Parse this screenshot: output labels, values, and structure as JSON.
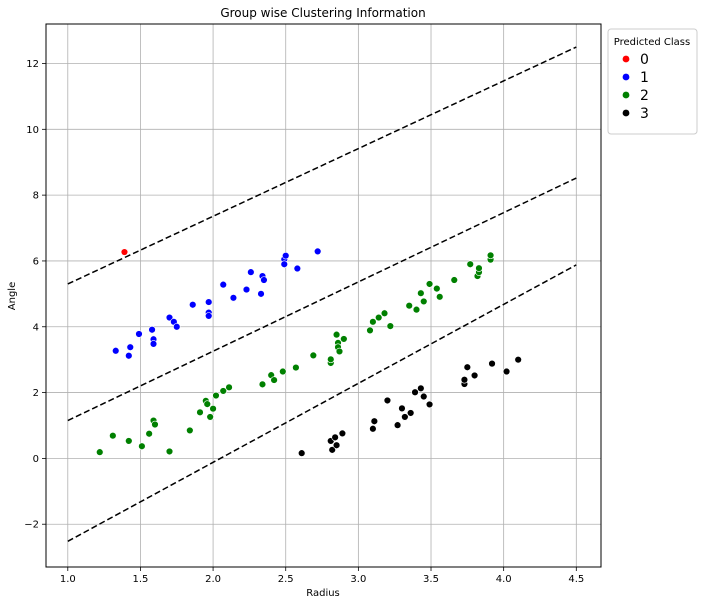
{
  "chart_data": {
    "type": "scatter",
    "title": "Group wise Clustering Information",
    "xlabel": "Radius",
    "ylabel": "Angle",
    "xlim": [
      0.85,
      4.67
    ],
    "ylim": [
      -3.3,
      13.2
    ],
    "xticks": [
      1.0,
      1.5,
      2.0,
      2.5,
      3.0,
      3.5,
      4.0,
      4.5
    ],
    "xtick_labels": [
      "1.0",
      "1.5",
      "2.0",
      "2.5",
      "3.0",
      "3.5",
      "4.0",
      "4.5"
    ],
    "yticks": [
      -2,
      0,
      2,
      4,
      6,
      8,
      10,
      12
    ],
    "ytick_labels": [
      "−2",
      "0",
      "2",
      "4",
      "6",
      "8",
      "10",
      "12"
    ],
    "grid": true,
    "legend": {
      "title": "Predicted Class",
      "placement": "outside-top-right"
    },
    "series": [
      {
        "name": "0",
        "color": "#ff0000",
        "points": [
          [
            1.39,
            6.27
          ]
        ]
      },
      {
        "name": "1",
        "color": "#0000ff",
        "points": [
          [
            1.33,
            3.27
          ],
          [
            1.42,
            3.12
          ],
          [
            1.43,
            3.38
          ],
          [
            1.49,
            3.78
          ],
          [
            1.58,
            3.91
          ],
          [
            1.59,
            3.62
          ],
          [
            1.59,
            3.48
          ],
          [
            1.7,
            4.28
          ],
          [
            1.73,
            4.15
          ],
          [
            1.75,
            4.0
          ],
          [
            1.86,
            4.67
          ],
          [
            1.97,
            4.43
          ],
          [
            1.97,
            4.33
          ],
          [
            1.97,
            4.75
          ],
          [
            2.07,
            5.28
          ],
          [
            2.14,
            4.88
          ],
          [
            2.23,
            5.13
          ],
          [
            2.26,
            5.66
          ],
          [
            2.33,
            5.0
          ],
          [
            2.34,
            5.54
          ],
          [
            2.35,
            5.42
          ],
          [
            2.49,
            6.05
          ],
          [
            2.49,
            5.9
          ],
          [
            2.5,
            6.16
          ],
          [
            2.58,
            5.77
          ],
          [
            2.72,
            6.29
          ]
        ]
      },
      {
        "name": "2",
        "color": "#008000",
        "points": [
          [
            1.22,
            0.19
          ],
          [
            1.31,
            0.69
          ],
          [
            1.42,
            0.53
          ],
          [
            1.51,
            0.37
          ],
          [
            1.56,
            0.75
          ],
          [
            1.59,
            1.15
          ],
          [
            1.6,
            1.03
          ],
          [
            1.7,
            0.21
          ],
          [
            1.84,
            0.85
          ],
          [
            1.91,
            1.4
          ],
          [
            1.95,
            1.75
          ],
          [
            1.96,
            1.65
          ],
          [
            1.98,
            1.26
          ],
          [
            2.0,
            1.51
          ],
          [
            2.02,
            1.91
          ],
          [
            2.07,
            2.05
          ],
          [
            2.11,
            2.16
          ],
          [
            2.34,
            2.25
          ],
          [
            2.4,
            2.53
          ],
          [
            2.42,
            2.38
          ],
          [
            2.48,
            2.64
          ],
          [
            2.57,
            2.76
          ],
          [
            2.69,
            3.13
          ],
          [
            2.81,
            2.9
          ],
          [
            2.81,
            3.01
          ],
          [
            2.85,
            3.76
          ],
          [
            2.86,
            3.51
          ],
          [
            2.86,
            3.38
          ],
          [
            2.87,
            3.25
          ],
          [
            2.9,
            3.63
          ],
          [
            3.08,
            3.89
          ],
          [
            3.1,
            4.15
          ],
          [
            3.14,
            4.28
          ],
          [
            3.18,
            4.41
          ],
          [
            3.22,
            4.02
          ],
          [
            3.35,
            4.64
          ],
          [
            3.4,
            4.52
          ],
          [
            3.43,
            5.02
          ],
          [
            3.45,
            4.77
          ],
          [
            3.49,
            5.3
          ],
          [
            3.54,
            5.16
          ],
          [
            3.56,
            4.91
          ],
          [
            3.66,
            5.42
          ],
          [
            3.77,
            5.9
          ],
          [
            3.82,
            5.54
          ],
          [
            3.83,
            5.66
          ],
          [
            3.83,
            5.78
          ],
          [
            3.91,
            6.04
          ],
          [
            3.91,
            6.17
          ]
        ]
      },
      {
        "name": "3",
        "color": "#000000",
        "points": [
          [
            2.61,
            0.16
          ],
          [
            2.81,
            0.53
          ],
          [
            2.82,
            0.26
          ],
          [
            2.84,
            0.64
          ],
          [
            2.85,
            0.4
          ],
          [
            2.89,
            0.76
          ],
          [
            3.1,
            0.9
          ],
          [
            3.11,
            1.13
          ],
          [
            3.2,
            1.76
          ],
          [
            3.27,
            1.01
          ],
          [
            3.3,
            1.52
          ],
          [
            3.32,
            1.26
          ],
          [
            3.36,
            1.38
          ],
          [
            3.39,
            2.01
          ],
          [
            3.43,
            2.13
          ],
          [
            3.45,
            1.88
          ],
          [
            3.49,
            1.64
          ],
          [
            3.73,
            2.26
          ],
          [
            3.73,
            2.39
          ],
          [
            3.75,
            2.77
          ],
          [
            3.8,
            2.52
          ],
          [
            3.92,
            2.88
          ],
          [
            4.02,
            2.64
          ],
          [
            4.1,
            3.0
          ]
        ]
      }
    ],
    "reference_lines": [
      {
        "style": "dashed",
        "color": "#000000",
        "x": [
          1.0,
          4.5
        ],
        "y": [
          5.3,
          12.5
        ]
      },
      {
        "style": "dashed",
        "color": "#000000",
        "x": [
          1.0,
          4.5
        ],
        "y": [
          1.15,
          8.52
        ]
      },
      {
        "style": "dashed",
        "color": "#000000",
        "x": [
          1.0,
          4.5
        ],
        "y": [
          -2.52,
          5.88
        ]
      }
    ]
  }
}
